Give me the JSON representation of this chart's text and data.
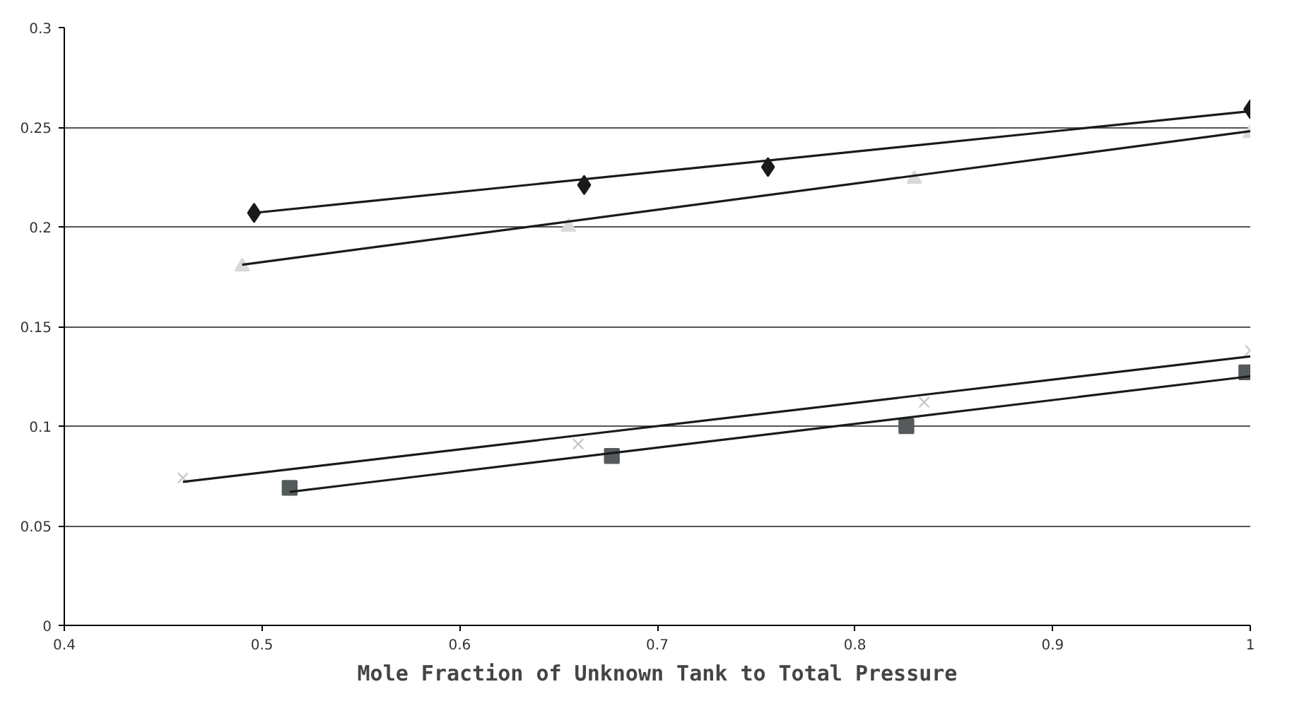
{
  "chart_data": {
    "type": "scatter",
    "xlabel": "Mole Fraction of Unknown Tank to Total Pressure",
    "xlim": [
      0.4,
      1.0
    ],
    "xticks": [
      0.4,
      0.5,
      0.6,
      0.7,
      0.8,
      0.9,
      1
    ],
    "ylim": [
      0,
      0.3
    ],
    "yticks": [
      0,
      0.05,
      0.1,
      0.15,
      0.2,
      0.25,
      0.3
    ],
    "grid": "y",
    "series": [
      {
        "color": "#1a1a1a",
        "marker": "diamond",
        "x": [
          0.496,
          0.663,
          0.756,
          1.0
        ],
        "values": [
          0.207,
          0.221,
          0.23,
          0.259
        ]
      },
      {
        "color": "#d9d9d9",
        "marker": "triangle",
        "x": [
          0.49,
          0.655,
          0.83,
          1.0
        ],
        "values": [
          0.18,
          0.2,
          0.224,
          0.247
        ]
      },
      {
        "color": "#c8c8c8",
        "marker": "cross",
        "x": [
          0.46,
          0.66,
          0.835,
          1.0
        ],
        "values": [
          0.074,
          0.091,
          0.112,
          0.138
        ]
      },
      {
        "color": "#555a5c",
        "marker": "square",
        "x": [
          0.514,
          0.677,
          0.826,
          0.998
        ],
        "values": [
          0.069,
          0.085,
          0.1,
          0.127
        ]
      },
      {
        "type": "line",
        "color": "#1a1a1a",
        "marker": "none",
        "x": [
          0.496,
          1.0
        ],
        "values": [
          0.207,
          0.258
        ]
      },
      {
        "type": "line",
        "color": "#1a1a1a",
        "marker": "none",
        "x": [
          0.49,
          1.0
        ],
        "values": [
          0.181,
          0.248
        ]
      },
      {
        "type": "line",
        "color": "#1a1a1a",
        "marker": "none",
        "x": [
          0.46,
          1.0
        ],
        "values": [
          0.072,
          0.135
        ]
      },
      {
        "type": "line",
        "color": "#1a1a1a",
        "marker": "none",
        "x": [
          0.514,
          1.0
        ],
        "values": [
          0.067,
          0.125
        ]
      }
    ]
  }
}
